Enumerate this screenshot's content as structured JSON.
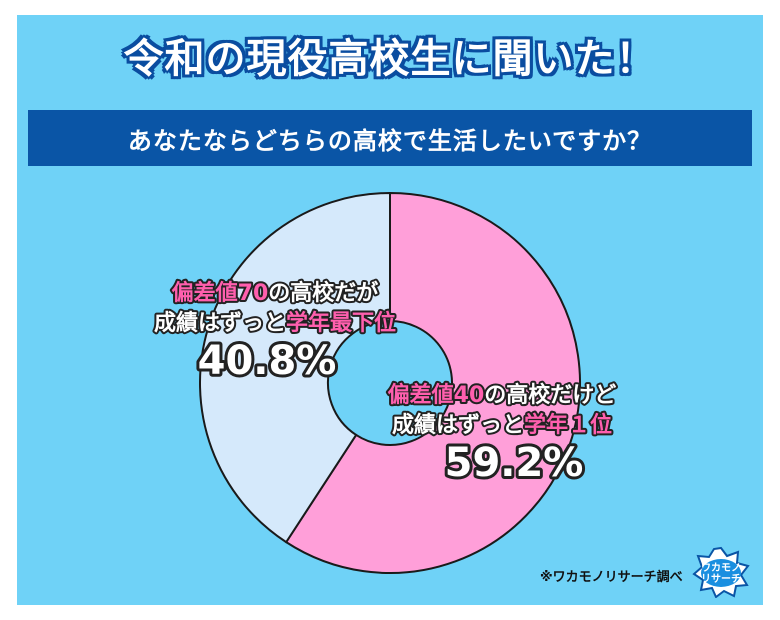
{
  "header": {
    "title": "令和の現役高校生に聞いた！",
    "question": "あなたならどちらの高校で生活したいですか？"
  },
  "chart_data": {
    "type": "pie",
    "variant": "donut",
    "slices": [
      {
        "label_line1_parts": [
          "偏差値40",
          "の高校だけど"
        ],
        "label_line2_parts": [
          "成績はずっと",
          "学年１位"
        ],
        "value": 59.2,
        "value_label": "59.2%",
        "color": "#ff9fd9"
      },
      {
        "label_line1_parts": [
          "偏差値70",
          "の高校だが"
        ],
        "label_line2_parts": [
          "成績はずっと",
          "学年最下位"
        ],
        "value": 40.8,
        "value_label": "40.8%",
        "color": "#d5e9fb"
      }
    ],
    "start_angle": "12 o'clock",
    "direction": "clockwise"
  },
  "footer": {
    "credit": "※ワカモノリサーチ調べ",
    "logo_line1": "ワカモノ",
    "logo_line2": "リサーチ"
  },
  "colors": {
    "background": "#6fd2f7",
    "title_outline": "#0a4da0",
    "question_bar": "#0a55a6",
    "label_highlight": "#ff5fae",
    "label_outline": "#222222"
  }
}
